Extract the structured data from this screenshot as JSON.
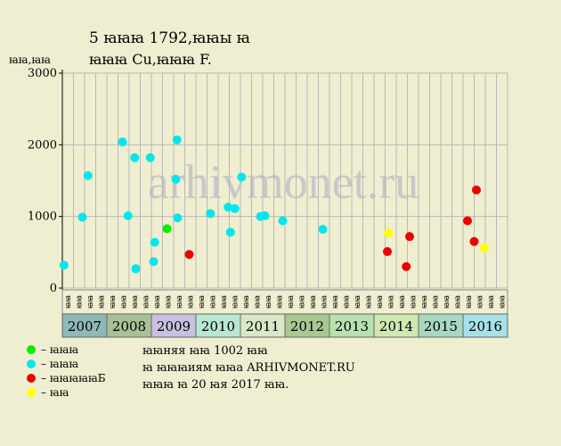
{
  "title": {
    "line1": "5 ꙗꙗꙗ 1792,ꙗꙗы ꙗ",
    "line2": "ꙗꙗꙗ Cu,ꙗꙗꙗ F."
  },
  "y_unit_label": "ꙗꙗ,ꙗꙗ",
  "watermark": "arhivmonet.ru",
  "legend": [
    {
      "label": "– ꙗꙗꙗ",
      "color": "#00ee00"
    },
    {
      "label": "– ꙗꙗꙗ",
      "color": "#00e8ee"
    },
    {
      "label": "– ꙗꙗꙗꙗꙗБ",
      "color": "#ee0000"
    },
    {
      "label": "– ꙗꙗ",
      "color": "#ffff00"
    }
  ],
  "info": {
    "line1": "ꙗꙗняя ꙗꙗ 1002 ꙗꙗ",
    "line2": "ꙗ ꙗꙗꙗиям ꙗꙗа ARHIVMONET.RU",
    "line3": "ꙗꙗꙗ ꙗ 20 ꙗя 2017 ꙗꙗ."
  },
  "chart_data": {
    "type": "scatter",
    "ylim": [
      0,
      3000
    ],
    "yticks": [
      0,
      1000,
      2000,
      3000
    ],
    "ytick_labels": [
      "0",
      "1000",
      "2000",
      "3000"
    ],
    "grid": true,
    "years": [
      {
        "label": "2007",
        "color": "#8fb8b8"
      },
      {
        "label": "2008",
        "color": "#a8c098"
      },
      {
        "label": "2009",
        "color": "#c8c0e0"
      },
      {
        "label": "2010",
        "color": "#b8e8d0"
      },
      {
        "label": "2011",
        "color": "#d8e8c8"
      },
      {
        "label": "2012",
        "color": "#a8c890"
      },
      {
        "label": "2013",
        "color": "#b8e0b0"
      },
      {
        "label": "2014",
        "color": "#d0e8b0"
      },
      {
        "label": "2015",
        "color": "#a8d8c0"
      },
      {
        "label": "2016",
        "color": "#a8e0e8"
      }
    ],
    "quarters": [
      "ꙗꙗ",
      "ꙗꙗ",
      "ꙗꙗ",
      "ꙗꙗ",
      "ꙗꙗ",
      "ꙗꙗ",
      "ꙗꙗ",
      "ꙗꙗ",
      "ꙗꙗ",
      "ꙗꙗ",
      "ꙗꙗ",
      "ꙗꙗ",
      "ꙗꙗ",
      "ꙗꙗ",
      "ꙗꙗ",
      "ꙗꙗ",
      "ꙗꙗ",
      "ꙗꙗ",
      "ꙗꙗ",
      "ꙗꙗ",
      "ꙗꙗ",
      "ꙗꙗ",
      "ꙗꙗ",
      "ꙗꙗ",
      "ꙗꙗ",
      "ꙗꙗ",
      "ꙗꙗ",
      "ꙗꙗ",
      "ꙗꙗ",
      "ꙗꙗ",
      "ꙗꙗ",
      "ꙗꙗ",
      "ꙗꙗ",
      "ꙗꙗ",
      "ꙗꙗ",
      "ꙗꙗ",
      "ꙗꙗ",
      "ꙗꙗ",
      "ꙗꙗ",
      "ꙗꙗ"
    ],
    "points": [
      {
        "q": 0.15,
        "value": 320,
        "grade": 1
      },
      {
        "q": 1.8,
        "value": 990,
        "grade": 1
      },
      {
        "q": 2.3,
        "value": 1570,
        "grade": 1
      },
      {
        "q": 5.4,
        "value": 2040,
        "grade": 1
      },
      {
        "q": 5.9,
        "value": 1010,
        "grade": 1
      },
      {
        "q": 6.5,
        "value": 1820,
        "grade": 1
      },
      {
        "q": 6.6,
        "value": 270,
        "grade": 1
      },
      {
        "q": 7.9,
        "value": 1820,
        "grade": 1
      },
      {
        "q": 8.2,
        "value": 370,
        "grade": 1
      },
      {
        "q": 8.3,
        "value": 640,
        "grade": 1
      },
      {
        "q": 9.4,
        "value": 830,
        "grade": 0
      },
      {
        "q": 10.2,
        "value": 1520,
        "grade": 1
      },
      {
        "q": 10.3,
        "value": 2070,
        "grade": 1
      },
      {
        "q": 10.35,
        "value": 980,
        "grade": 1
      },
      {
        "q": 11.4,
        "value": 470,
        "grade": 2
      },
      {
        "q": 13.3,
        "value": 1040,
        "grade": 1
      },
      {
        "q": 14.9,
        "value": 1130,
        "grade": 1
      },
      {
        "q": 15.1,
        "value": 780,
        "grade": 1
      },
      {
        "q": 15.5,
        "value": 1110,
        "grade": 1
      },
      {
        "q": 16.1,
        "value": 1550,
        "grade": 1
      },
      {
        "q": 17.8,
        "value": 1000,
        "grade": 1
      },
      {
        "q": 18.2,
        "value": 1010,
        "grade": 1
      },
      {
        "q": 19.8,
        "value": 940,
        "grade": 1
      },
      {
        "q": 23.4,
        "value": 820,
        "grade": 1
      },
      {
        "q": 29.2,
        "value": 510,
        "grade": 2
      },
      {
        "q": 29.3,
        "value": 770,
        "grade": 3
      },
      {
        "q": 30.9,
        "value": 300,
        "grade": 2
      },
      {
        "q": 31.2,
        "value": 720,
        "grade": 2
      },
      {
        "q": 36.4,
        "value": 940,
        "grade": 2
      },
      {
        "q": 37.0,
        "value": 650,
        "grade": 2
      },
      {
        "q": 37.2,
        "value": 1370,
        "grade": 2
      },
      {
        "q": 37.9,
        "value": 560,
        "grade": 3
      }
    ]
  }
}
